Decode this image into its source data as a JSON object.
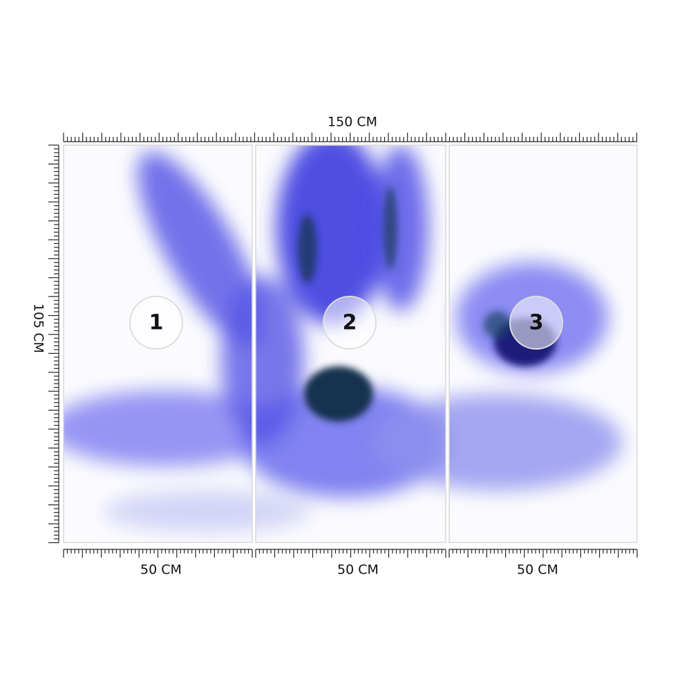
{
  "dimensions": {
    "width": "150 CM",
    "height": "105 CM"
  },
  "panels": [
    {
      "number": "1",
      "width": "50 CM"
    },
    {
      "number": "2",
      "width": "50 CM"
    },
    {
      "number": "3",
      "width": "50 CM"
    }
  ]
}
